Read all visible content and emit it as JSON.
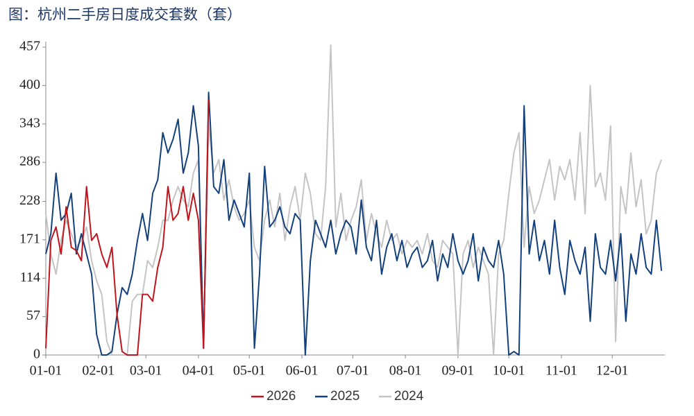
{
  "chart_data": {
    "type": "line",
    "title": "图：杭州二手房日度成交套数（套）",
    "x": [
      0,
      3,
      6,
      9,
      12,
      15,
      18,
      21,
      24,
      27,
      30,
      33,
      36,
      39,
      42,
      45,
      48,
      51,
      54,
      57,
      60,
      63,
      66,
      69,
      72,
      75,
      78,
      81,
      84,
      87,
      90,
      93,
      96,
      99,
      102,
      105,
      108,
      111,
      114,
      117,
      120,
      123,
      126,
      129,
      132,
      135,
      138,
      141,
      144,
      147,
      150,
      153,
      156,
      159,
      162,
      165,
      168,
      171,
      174,
      177,
      180,
      183,
      186,
      189,
      192,
      195,
      198,
      201,
      204,
      207,
      210,
      213,
      216,
      219,
      222,
      225,
      228,
      231,
      234,
      237,
      240,
      243,
      246,
      249,
      252,
      255,
      258,
      261,
      264,
      267,
      270,
      273,
      276,
      279,
      282,
      285,
      288,
      291,
      294,
      297,
      300,
      303,
      306,
      309,
      312,
      315,
      318,
      321,
      324,
      327,
      330,
      333,
      336,
      339,
      342,
      345,
      348,
      351,
      354,
      357,
      360,
      363
    ],
    "xlim": [
      0,
      365
    ],
    "xticks": [
      {
        "value": 0,
        "label": "01-01"
      },
      {
        "value": 31,
        "label": "02-01"
      },
      {
        "value": 59,
        "label": "03-01"
      },
      {
        "value": 90,
        "label": "04-01"
      },
      {
        "value": 120,
        "label": "05-01"
      },
      {
        "value": 151,
        "label": "06-01"
      },
      {
        "value": 181,
        "label": "07-01"
      },
      {
        "value": 212,
        "label": "08-01"
      },
      {
        "value": 243,
        "label": "09-01"
      },
      {
        "value": 273,
        "label": "10-01"
      },
      {
        "value": 304,
        "label": "11-01"
      },
      {
        "value": 334,
        "label": "12-01"
      }
    ],
    "ylim": [
      0,
      457
    ],
    "yticks": [
      0,
      57,
      114,
      171,
      228,
      286,
      343,
      400,
      457
    ],
    "legend": "bottom",
    "series": [
      {
        "name": "2026",
        "color": "#c0141c",
        "values": [
          10,
          170,
          190,
          150,
          220,
          160,
          155,
          140,
          250,
          170,
          180,
          150,
          130,
          160,
          60,
          5,
          0,
          0,
          0,
          90,
          90,
          80,
          130,
          160,
          250,
          200,
          210,
          250,
          200,
          240,
          200,
          10,
          380,
          null,
          null,
          null,
          null,
          null,
          null,
          null,
          null,
          null,
          null,
          null,
          null,
          null,
          null,
          null,
          null,
          null,
          null,
          null,
          null,
          null,
          null,
          null,
          null,
          null,
          null,
          null,
          null,
          null,
          null,
          null,
          null,
          null,
          null,
          null,
          null,
          null,
          null,
          null,
          null,
          null,
          null,
          null,
          null,
          null,
          null,
          null,
          null,
          null,
          null,
          null,
          null,
          null,
          null,
          null,
          null,
          null,
          null,
          null,
          null,
          null,
          null,
          null,
          null,
          null,
          null,
          null,
          null,
          null,
          null,
          null,
          null,
          null,
          null,
          null,
          null,
          null,
          null,
          null,
          null,
          null,
          null,
          null,
          null,
          null,
          null,
          null,
          null,
          null
        ]
      },
      {
        "name": "2025",
        "color": "#12407c",
        "values": [
          150,
          180,
          270,
          200,
          210,
          240,
          150,
          180,
          150,
          120,
          30,
          0,
          0,
          5,
          60,
          100,
          90,
          120,
          170,
          210,
          170,
          240,
          260,
          330,
          300,
          320,
          350,
          270,
          300,
          370,
          310,
          10,
          390,
          250,
          240,
          290,
          200,
          230,
          210,
          190,
          270,
          10,
          120,
          280,
          190,
          200,
          220,
          190,
          180,
          210,
          200,
          0,
          140,
          200,
          180,
          160,
          200,
          150,
          180,
          200,
          190,
          150,
          230,
          160,
          140,
          200,
          120,
          160,
          180,
          140,
          170,
          130,
          150,
          160,
          130,
          140,
          170,
          110,
          150,
          130,
          180,
          140,
          120,
          140,
          180,
          110,
          160,
          140,
          130,
          170,
          120,
          0,
          5,
          0,
          370,
          150,
          200,
          140,
          170,
          120,
          200,
          130,
          90,
          170,
          140,
          120,
          160,
          50,
          180,
          130,
          120,
          170,
          110,
          180,
          50,
          150,
          120,
          180,
          130,
          120,
          200,
          125
        ]
      },
      {
        "name": "2024",
        "color": "#c4c4c4",
        "values": [
          210,
          150,
          120,
          170,
          200,
          180,
          160,
          170,
          190,
          140,
          110,
          90,
          20,
          0,
          0,
          0,
          0,
          80,
          90,
          90,
          140,
          130,
          160,
          200,
          200,
          230,
          250,
          230,
          220,
          270,
          290,
          20,
          340,
          270,
          290,
          230,
          260,
          220,
          200,
          210,
          230,
          160,
          140,
          200,
          230,
          190,
          240,
          170,
          220,
          250,
          200,
          270,
          240,
          180,
          170,
          250,
          460,
          190,
          240,
          170,
          200,
          220,
          260,
          170,
          210,
          180,
          160,
          200,
          170,
          180,
          150,
          170,
          160,
          170,
          150,
          180,
          140,
          130,
          170,
          160,
          150,
          0,
          150,
          170,
          130,
          160,
          140,
          120,
          0,
          150,
          170,
          240,
          300,
          330,
          160,
          250,
          210,
          230,
          260,
          290,
          230,
          280,
          260,
          290,
          230,
          330,
          210,
          400,
          250,
          270,
          230,
          340,
          20,
          250,
          210,
          300,
          220,
          260,
          180,
          200,
          270,
          290
        ]
      }
    ]
  }
}
